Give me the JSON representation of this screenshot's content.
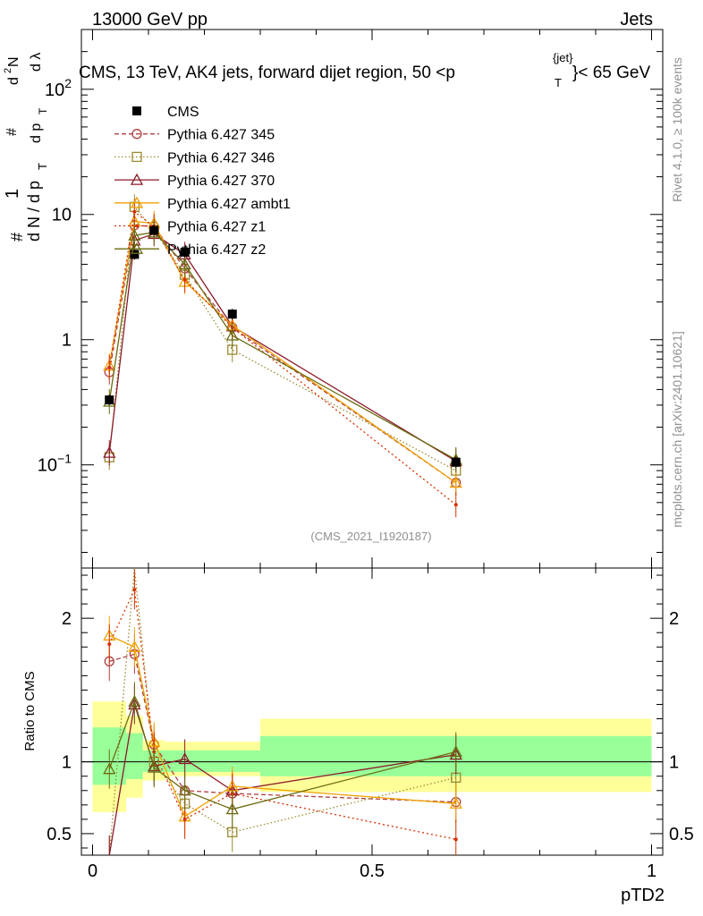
{
  "header": {
    "left": "13000 GeV pp",
    "right": "Jets",
    "title": "CMS, 13 TeV, AK4 jets, forward dijet region, 50 <p",
    "title_sup": "{jet}",
    "title_sub": "T",
    "title_end": "}< 65 GeV"
  },
  "side": {
    "rivet": "Rivet 4.1.0, ≥ 100k events",
    "mcplots": "mcplots.cern.ch [arXiv:2401.10621]"
  },
  "watermark": "(CMS_2021_I1920187)",
  "colors": {
    "CMS": "#000000",
    "p345": "#b04040",
    "p346": "#9a8a30",
    "p370": "#8b1a2a",
    "ambt1": "#f0a000",
    "z1": "#d83000",
    "z2": "#6b6b10",
    "band_inner": "#99ff99",
    "band_outer": "#ffff99"
  },
  "chart_data": {
    "type": "scatter",
    "xlabel": "pTD2",
    "ylabel": "1/dN/dp_T d²N/dp_T dλ",
    "ylabel_ratio": "Ratio to CMS",
    "xlim": [
      -0.02,
      1.02
    ],
    "ylim_main": [
      0.015,
      300
    ],
    "ylim_ratio": [
      0.35,
      2.35
    ],
    "log_y_main": true,
    "x_ticks": [
      {
        "v": 0,
        "label": "0"
      },
      {
        "v": 0.5,
        "label": "0.5"
      },
      {
        "v": 1,
        "label": "1"
      }
    ],
    "y_ticks_main": [
      {
        "v": 0.1,
        "label": "10",
        "exp": "−1"
      },
      {
        "v": 1,
        "label": "1",
        "exp": ""
      },
      {
        "v": 10,
        "label": "10",
        "exp": ""
      },
      {
        "v": 100,
        "label": "10",
        "exp": "2"
      }
    ],
    "y_ticks_ratio": [
      {
        "v": 0.5,
        "label": "0.5"
      },
      {
        "v": 1,
        "label": "1"
      },
      {
        "v": 2,
        "label": "2"
      }
    ],
    "bins": [
      {
        "lo": 0.0,
        "hi": 0.06,
        "x": 0.03
      },
      {
        "lo": 0.06,
        "hi": 0.09,
        "x": 0.075
      },
      {
        "lo": 0.09,
        "hi": 0.13,
        "x": 0.11
      },
      {
        "lo": 0.13,
        "hi": 0.2,
        "x": 0.165
      },
      {
        "lo": 0.2,
        "hi": 0.3,
        "x": 0.25
      },
      {
        "lo": 0.3,
        "hi": 1.0,
        "x": 0.65
      }
    ],
    "reference": {
      "name": "CMS",
      "values": [
        0.33,
        4.8,
        7.5,
        5.0,
        1.6,
        0.105
      ],
      "band_inner": [
        [
          0.84,
          1.24
        ],
        [
          0.88,
          1.2
        ],
        [
          0.93,
          1.08
        ],
        [
          0.93,
          1.08
        ],
        [
          0.93,
          1.08
        ],
        [
          0.9,
          1.18
        ]
      ],
      "band_outer": [
        [
          0.65,
          1.42
        ],
        [
          0.75,
          1.32
        ],
        [
          0.87,
          1.15
        ],
        [
          0.9,
          1.14
        ],
        [
          0.9,
          1.14
        ],
        [
          0.79,
          1.3
        ]
      ]
    },
    "series": [
      {
        "name": "Pythia 6.427 345",
        "key": "p345",
        "marker": "circle",
        "dash": "5,3",
        "values": [
          0.55,
          8.2,
          8.0,
          3.7,
          1.25,
          0.072
        ],
        "ratio": [
          1.7,
          1.75,
          1.12,
          0.8,
          0.78,
          0.72
        ]
      },
      {
        "name": "Pythia 6.427 346",
        "key": "p346",
        "marker": "square",
        "dash": "1.5,2.5",
        "values": [
          0.115,
          11.5,
          7.5,
          3.3,
          0.83,
          0.09
        ],
        "ratio": [
          0.35,
          2.35,
          1.0,
          0.71,
          0.51,
          0.89
        ]
      },
      {
        "name": "Pythia 6.427 370",
        "key": "p370",
        "marker": "triangle",
        "dash": "",
        "values": [
          0.125,
          6.2,
          7.0,
          4.8,
          1.28,
          0.107
        ],
        "ratio": [
          0.35,
          1.4,
          0.97,
          1.02,
          0.8,
          1.05
        ]
      },
      {
        "name": "Pythia 6.427 ambt1",
        "key": "ambt1",
        "marker": "triangle",
        "dash": "",
        "values": [
          0.62,
          8.8,
          8.5,
          2.9,
          1.3,
          0.072
        ],
        "ratio": [
          1.88,
          1.8,
          1.14,
          0.62,
          0.83,
          0.71
        ]
      },
      {
        "name": "Pythia 6.427 z1",
        "key": "z1",
        "marker": "dot",
        "dash": "2,3",
        "values": [
          0.6,
          10.5,
          8.0,
          3.0,
          1.25,
          0.048
        ],
        "ratio": [
          1.82,
          2.2,
          1.07,
          0.6,
          0.78,
          0.46
        ]
      },
      {
        "name": "Pythia 6.427 z2",
        "key": "z2",
        "marker": "triangle",
        "dash": "",
        "values": [
          0.32,
          6.8,
          7.2,
          4.0,
          1.08,
          0.11
        ],
        "ratio": [
          0.95,
          1.42,
          0.96,
          0.8,
          0.67,
          1.07
        ]
      }
    ]
  }
}
